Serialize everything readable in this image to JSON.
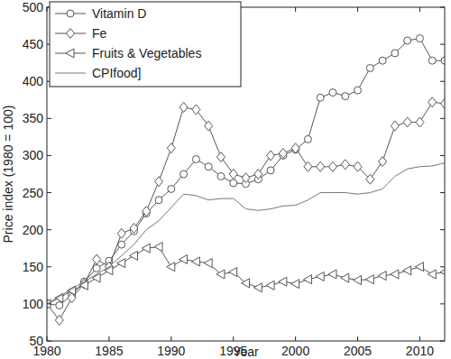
{
  "chart_data": {
    "type": "line",
    "x_label": "Year",
    "y_label": "Price index (1980 = 100)",
    "x": [
      1980,
      1981,
      1982,
      1983,
      1984,
      1985,
      1986,
      1987,
      1988,
      1989,
      1990,
      1991,
      1992,
      1993,
      1994,
      1995,
      1996,
      1997,
      1998,
      1999,
      2000,
      2001,
      2002,
      2003,
      2004,
      2005,
      2006,
      2007,
      2008,
      2009,
      2010,
      2011,
      2012
    ],
    "xlim": [
      1980,
      2012
    ],
    "xticks": [
      1980,
      1985,
      1990,
      1995,
      2000,
      2005,
      2010
    ],
    "ylim": [
      50,
      500
    ],
    "yticks": [
      50,
      100,
      150,
      200,
      250,
      300,
      350,
      400,
      450,
      500
    ],
    "grid": false,
    "legend": "upper-left",
    "series": [
      {
        "name": "Vitamin D",
        "color": "#555555",
        "marker": "circle",
        "line_style": "solid",
        "values": [
          100,
          98,
          112,
          130,
          148,
          158,
          180,
          198,
          222,
          240,
          255,
          275,
          295,
          285,
          272,
          263,
          262,
          268,
          280,
          300,
          308,
          322,
          378,
          385,
          380,
          388,
          418,
          428,
          438,
          455,
          458,
          428,
          428
        ]
      },
      {
        "name": "Fe",
        "color": "#555555",
        "marker": "diamond",
        "line_style": "solid",
        "values": [
          100,
          78,
          108,
          127,
          160,
          150,
          195,
          202,
          225,
          265,
          310,
          365,
          362,
          340,
          298,
          275,
          270,
          275,
          300,
          303,
          310,
          285,
          285,
          285,
          288,
          285,
          268,
          292,
          340,
          345,
          345,
          372,
          370
        ]
      },
      {
        "name": "Fruits & Vegetables",
        "color": "#555555",
        "marker": "triangle-left",
        "line_style": "solid",
        "values": [
          100,
          108,
          118,
          125,
          135,
          145,
          155,
          165,
          175,
          177,
          150,
          160,
          157,
          155,
          140,
          143,
          128,
          122,
          125,
          130,
          127,
          133,
          137,
          140,
          135,
          132,
          133,
          138,
          140,
          145,
          150,
          140,
          143
        ]
      },
      {
        "name": "CPIfood]",
        "color": "#777777",
        "marker": "none",
        "line_style": "solid",
        "values": [
          100,
          110,
          120,
          130,
          140,
          150,
          165,
          180,
          200,
          212,
          230,
          248,
          246,
          240,
          242,
          242,
          228,
          226,
          228,
          232,
          233,
          240,
          250,
          250,
          250,
          248,
          250,
          255,
          272,
          282,
          285,
          286,
          290
        ]
      }
    ]
  }
}
